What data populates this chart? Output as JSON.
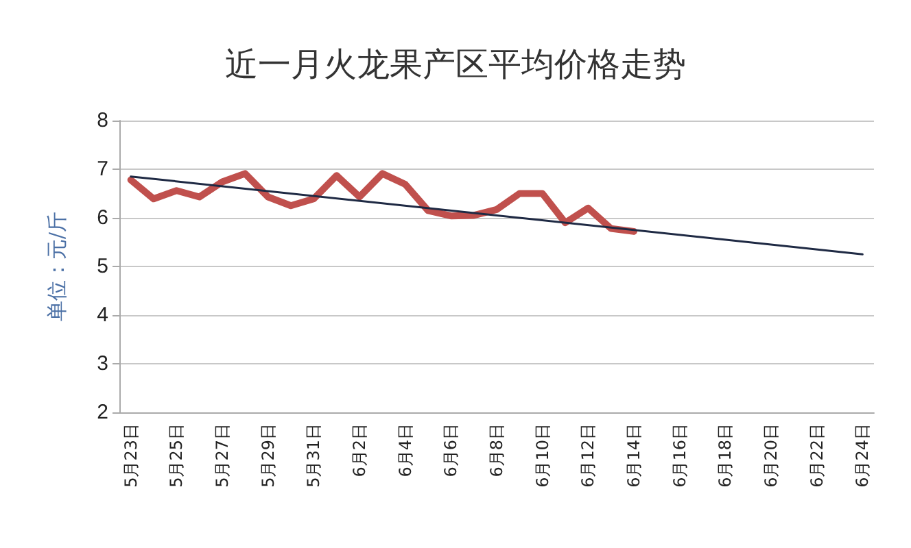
{
  "chart_data": {
    "type": "line",
    "title": "近一月火龙果产区平均价格走势",
    "ylabel": "单位：元/斤",
    "categories": [
      "5月23日",
      null,
      "5月25日",
      null,
      "5月27日",
      null,
      "5月29日",
      null,
      "5月31日",
      null,
      "6月2日",
      null,
      "6月4日",
      null,
      "6月6日",
      null,
      "6月8日",
      null,
      "6月10日",
      null,
      "6月12日",
      null,
      "6月14日",
      null,
      "6月16日",
      null,
      "6月18日",
      null,
      "6月20日",
      null,
      "6月22日",
      null,
      "6月24日"
    ],
    "series": [
      {
        "color": "#c0504d",
        "values": [
          6.78,
          6.39,
          6.56,
          6.43,
          6.74,
          6.91,
          6.43,
          6.25,
          6.39,
          6.87,
          6.43,
          6.91,
          6.69,
          6.15,
          6.04,
          6.05,
          6.17,
          6.5,
          6.5,
          5.9,
          6.2,
          5.78,
          5.72,
          null,
          null,
          null,
          null,
          null,
          null,
          null,
          null,
          null,
          null
        ]
      },
      {
        "type": "line",
        "color": "#1f2a44",
        "values": [
          6.85,
          null,
          null,
          null,
          null,
          null,
          null,
          null,
          null,
          null,
          null,
          null,
          null,
          null,
          null,
          null,
          null,
          null,
          null,
          null,
          null,
          null,
          null,
          null,
          null,
          null,
          null,
          null,
          null,
          null,
          null,
          null,
          5.25
        ]
      }
    ],
    "ylim": [
      2,
      8
    ],
    "yticks": [
      2,
      3,
      4,
      5,
      6,
      7,
      8
    ],
    "grid": "y",
    "marker": "none",
    "line_style": "solid"
  }
}
